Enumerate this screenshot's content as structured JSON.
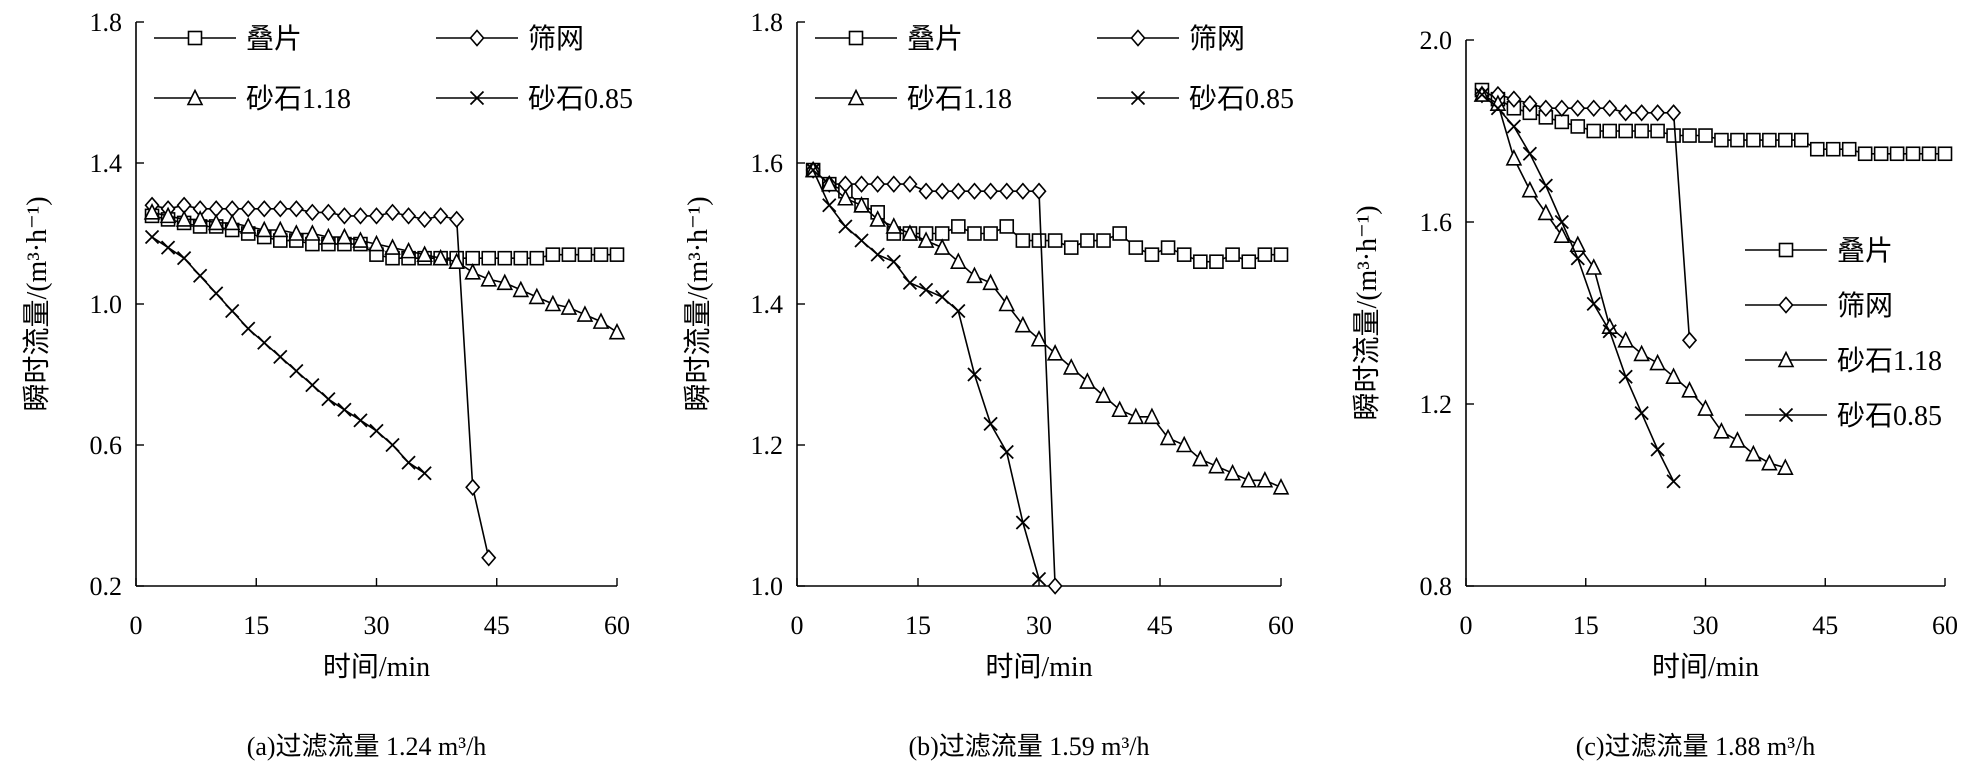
{
  "chart_data": [
    {
      "type": "line",
      "caption": "(a)过滤流量 1.24 m³/h",
      "xlabel": "时间/min",
      "ylabel": "瞬时流量/(m³·h⁻¹)",
      "xlim": [
        0,
        60
      ],
      "ylim": [
        0.2,
        1.8
      ],
      "xticks": [
        0,
        15,
        30,
        45,
        60
      ],
      "yticks": [
        0.2,
        0.6,
        1.0,
        1.4,
        1.8
      ],
      "xtick_labels": [
        "0",
        "15",
        "30",
        "45",
        "60"
      ],
      "ytick_labels": [
        "0.2",
        "0.6",
        "1.0",
        "1.4",
        "1.8"
      ],
      "legend": {
        "placement": "top",
        "columns": 2
      },
      "grid": false,
      "series": [
        {
          "name": "叠片",
          "marker": "square",
          "x": [
            2,
            4,
            6,
            8,
            10,
            12,
            14,
            16,
            18,
            20,
            22,
            24,
            26,
            28,
            30,
            32,
            34,
            36,
            38,
            40,
            42,
            44,
            46,
            48,
            50,
            52,
            54,
            56,
            58,
            60
          ],
          "y": [
            1.25,
            1.24,
            1.23,
            1.22,
            1.22,
            1.21,
            1.2,
            1.19,
            1.18,
            1.18,
            1.17,
            1.17,
            1.17,
            1.17,
            1.14,
            1.13,
            1.13,
            1.13,
            1.13,
            1.13,
            1.13,
            1.13,
            1.13,
            1.13,
            1.13,
            1.14,
            1.14,
            1.14,
            1.14,
            1.14
          ]
        },
        {
          "name": "筛网",
          "marker": "diamond",
          "x": [
            2,
            4,
            6,
            8,
            10,
            12,
            14,
            16,
            18,
            20,
            22,
            24,
            26,
            28,
            30,
            32,
            34,
            36,
            38,
            40,
            42,
            44
          ],
          "y": [
            1.28,
            1.27,
            1.28,
            1.27,
            1.27,
            1.27,
            1.27,
            1.27,
            1.27,
            1.27,
            1.26,
            1.26,
            1.25,
            1.25,
            1.25,
            1.26,
            1.25,
            1.24,
            1.25,
            1.24,
            0.48,
            0.28
          ]
        },
        {
          "name": "砂石1.18",
          "marker": "triangle",
          "x": [
            2,
            4,
            6,
            8,
            10,
            12,
            14,
            16,
            18,
            20,
            22,
            24,
            26,
            28,
            30,
            32,
            34,
            36,
            38,
            40,
            42,
            44,
            46,
            48,
            50,
            52,
            54,
            56,
            58,
            60
          ],
          "y": [
            1.26,
            1.25,
            1.24,
            1.24,
            1.23,
            1.23,
            1.22,
            1.21,
            1.21,
            1.2,
            1.2,
            1.19,
            1.19,
            1.18,
            1.17,
            1.16,
            1.15,
            1.14,
            1.13,
            1.12,
            1.09,
            1.07,
            1.06,
            1.04,
            1.02,
            1.0,
            0.99,
            0.97,
            0.95,
            0.92
          ]
        },
        {
          "name": "砂石0.85",
          "marker": "x",
          "x": [
            2,
            4,
            6,
            8,
            10,
            12,
            14,
            16,
            18,
            20,
            22,
            24,
            26,
            28,
            30,
            32,
            34,
            36
          ],
          "y": [
            1.19,
            1.16,
            1.13,
            1.08,
            1.03,
            0.98,
            0.93,
            0.89,
            0.85,
            0.81,
            0.77,
            0.73,
            0.7,
            0.67,
            0.64,
            0.6,
            0.55,
            0.52
          ]
        }
      ]
    },
    {
      "type": "line",
      "caption": "(b)过滤流量 1.59 m³/h",
      "xlabel": "时间/min",
      "ylabel": "瞬时流量/(m³·h⁻¹)",
      "xlim": [
        0,
        60
      ],
      "ylim": [
        1.0,
        1.8
      ],
      "xticks": [
        0,
        15,
        30,
        45,
        60
      ],
      "yticks": [
        1.0,
        1.2,
        1.4,
        1.6,
        1.8
      ],
      "xtick_labels": [
        "0",
        "15",
        "30",
        "45",
        "60"
      ],
      "ytick_labels": [
        "1.0",
        "1.2",
        "1.4",
        "1.6",
        "1.8"
      ],
      "legend": {
        "placement": "top",
        "columns": 2
      },
      "grid": false,
      "series": [
        {
          "name": "叠片",
          "marker": "square",
          "x": [
            2,
            4,
            6,
            8,
            10,
            12,
            14,
            16,
            18,
            20,
            22,
            24,
            26,
            28,
            30,
            32,
            34,
            36,
            38,
            40,
            42,
            44,
            46,
            48,
            50,
            52,
            54,
            56,
            58,
            60
          ],
          "y": [
            1.59,
            1.57,
            1.56,
            1.54,
            1.53,
            1.5,
            1.5,
            1.5,
            1.5,
            1.51,
            1.5,
            1.5,
            1.51,
            1.49,
            1.49,
            1.49,
            1.48,
            1.49,
            1.49,
            1.5,
            1.48,
            1.47,
            1.48,
            1.47,
            1.46,
            1.46,
            1.47,
            1.46,
            1.47,
            1.47
          ]
        },
        {
          "name": "筛网",
          "marker": "diamond",
          "x": [
            2,
            4,
            6,
            8,
            10,
            12,
            14,
            16,
            18,
            20,
            22,
            24,
            26,
            28,
            30,
            32
          ],
          "y": [
            1.59,
            1.57,
            1.57,
            1.57,
            1.57,
            1.57,
            1.57,
            1.56,
            1.56,
            1.56,
            1.56,
            1.56,
            1.56,
            1.56,
            1.56,
            1.0
          ]
        },
        {
          "name": "砂石1.18",
          "marker": "triangle",
          "x": [
            2,
            4,
            6,
            8,
            10,
            12,
            14,
            16,
            18,
            20,
            22,
            24,
            26,
            28,
            30,
            32,
            34,
            36,
            38,
            40,
            42,
            44,
            46,
            48,
            50,
            52,
            54,
            56,
            58,
            60
          ],
          "y": [
            1.59,
            1.57,
            1.55,
            1.54,
            1.52,
            1.51,
            1.5,
            1.49,
            1.48,
            1.46,
            1.44,
            1.43,
            1.4,
            1.37,
            1.35,
            1.33,
            1.31,
            1.29,
            1.27,
            1.25,
            1.24,
            1.24,
            1.21,
            1.2,
            1.18,
            1.17,
            1.16,
            1.15,
            1.15,
            1.14
          ]
        },
        {
          "name": "砂石0.85",
          "marker": "x",
          "x": [
            2,
            4,
            6,
            8,
            10,
            12,
            14,
            16,
            18,
            20,
            22,
            24,
            26,
            28,
            30
          ],
          "y": [
            1.59,
            1.54,
            1.51,
            1.49,
            1.47,
            1.46,
            1.43,
            1.42,
            1.41,
            1.39,
            1.3,
            1.23,
            1.19,
            1.09,
            1.01
          ]
        }
      ]
    },
    {
      "type": "line",
      "caption": "(c)过滤流量 1.88 m³/h",
      "xlabel": "时间/min",
      "ylabel": "瞬时流量/(m³·h⁻¹)",
      "xlim": [
        0,
        60
      ],
      "ylim": [
        0.8,
        2.0
      ],
      "xticks": [
        0,
        15,
        30,
        45,
        60
      ],
      "yticks": [
        0.8,
        1.2,
        1.6,
        2.0
      ],
      "xtick_labels": [
        "0",
        "15",
        "30",
        "45",
        "60"
      ],
      "ytick_labels": [
        "0.8",
        "1.2",
        "1.6",
        "2.0"
      ],
      "legend": {
        "placement": "right",
        "columns": 1
      },
      "grid": false,
      "series": [
        {
          "name": "叠片",
          "marker": "square",
          "x": [
            2,
            4,
            6,
            8,
            10,
            12,
            14,
            16,
            18,
            20,
            22,
            24,
            26,
            28,
            30,
            32,
            34,
            36,
            38,
            40,
            42,
            44,
            46,
            48,
            50,
            52,
            54,
            56,
            58,
            60
          ],
          "y": [
            1.89,
            1.87,
            1.85,
            1.84,
            1.83,
            1.82,
            1.81,
            1.8,
            1.8,
            1.8,
            1.8,
            1.8,
            1.79,
            1.79,
            1.79,
            1.78,
            1.78,
            1.78,
            1.78,
            1.78,
            1.78,
            1.76,
            1.76,
            1.76,
            1.75,
            1.75,
            1.75,
            1.75,
            1.75,
            1.75
          ]
        },
        {
          "name": "筛网",
          "marker": "diamond",
          "x": [
            2,
            4,
            6,
            8,
            10,
            12,
            14,
            16,
            18,
            20,
            22,
            24,
            26,
            28
          ],
          "y": [
            1.88,
            1.88,
            1.87,
            1.86,
            1.85,
            1.85,
            1.85,
            1.85,
            1.85,
            1.84,
            1.84,
            1.84,
            1.84,
            1.34
          ]
        },
        {
          "name": "砂石1.18",
          "marker": "triangle",
          "x": [
            2,
            4,
            6,
            8,
            10,
            12,
            14,
            16,
            18,
            20,
            22,
            24,
            26,
            28,
            30,
            32,
            34,
            36,
            38,
            40
          ],
          "y": [
            1.88,
            1.86,
            1.74,
            1.67,
            1.62,
            1.57,
            1.55,
            1.5,
            1.37,
            1.34,
            1.31,
            1.29,
            1.26,
            1.23,
            1.19,
            1.14,
            1.12,
            1.09,
            1.07,
            1.06
          ]
        },
        {
          "name": "砂石0.85",
          "marker": "x",
          "x": [
            2,
            4,
            6,
            8,
            10,
            12,
            14,
            16,
            18,
            20,
            22,
            24,
            26
          ],
          "y": [
            1.88,
            1.85,
            1.81,
            1.75,
            1.68,
            1.6,
            1.52,
            1.42,
            1.36,
            1.26,
            1.18,
            1.1,
            1.03
          ]
        }
      ]
    }
  ]
}
